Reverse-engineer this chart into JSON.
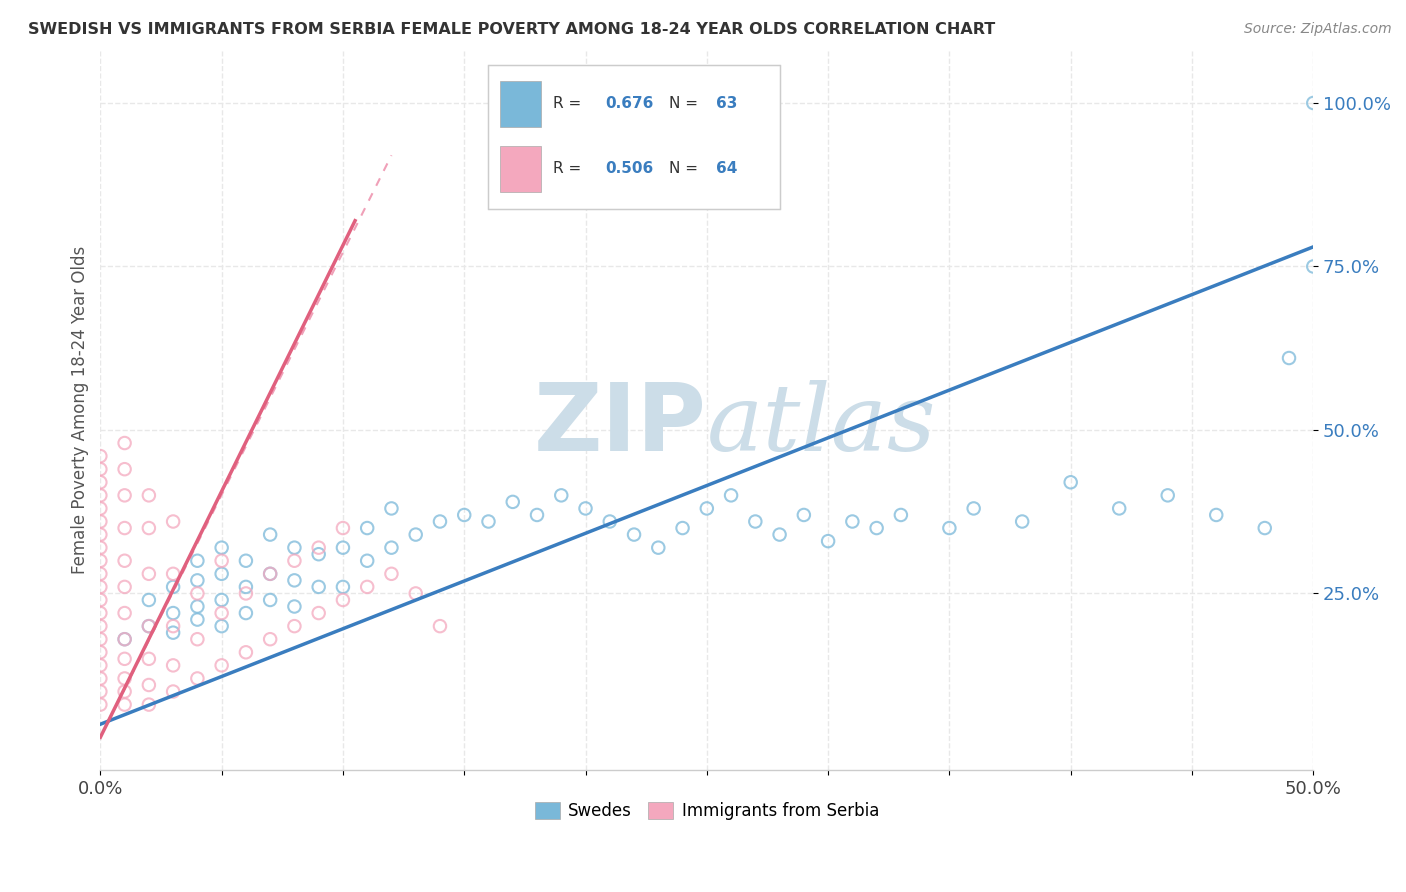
{
  "title": "SWEDISH VS IMMIGRANTS FROM SERBIA FEMALE POVERTY AMONG 18-24 YEAR OLDS CORRELATION CHART",
  "source": "Source: ZipAtlas.com",
  "ylabel": "Female Poverty Among 18-24 Year Olds",
  "y_tick_labels": [
    "25.0%",
    "50.0%",
    "75.0%",
    "100.0%"
  ],
  "x_tick_positions": [
    0.0,
    0.05,
    0.1,
    0.15,
    0.2,
    0.25,
    0.3,
    0.35,
    0.4,
    0.45,
    0.5
  ],
  "y_tick_positions": [
    0.25,
    0.5,
    0.75,
    1.0
  ],
  "legend_r1": "0.676",
  "legend_n1": "63",
  "legend_r2": "0.506",
  "legend_n2": "64",
  "blue_color": "#7ab8d9",
  "pink_color": "#f4a8be",
  "blue_line_color": "#3a7dbf",
  "pink_line_color": "#e0607e",
  "pink_dash_color": "#f0a0b8",
  "watermark_color": "#ccdde8",
  "xlim": [
    0.0,
    0.5
  ],
  "ylim": [
    -0.02,
    1.08
  ],
  "background_color": "#ffffff",
  "grid_color": "#e8e8e8",
  "blue_scatter_x": [
    0.01,
    0.02,
    0.02,
    0.03,
    0.03,
    0.03,
    0.04,
    0.04,
    0.04,
    0.04,
    0.05,
    0.05,
    0.05,
    0.05,
    0.06,
    0.06,
    0.06,
    0.07,
    0.07,
    0.07,
    0.08,
    0.08,
    0.08,
    0.09,
    0.09,
    0.1,
    0.1,
    0.11,
    0.11,
    0.12,
    0.12,
    0.13,
    0.14,
    0.15,
    0.16,
    0.17,
    0.18,
    0.19,
    0.2,
    0.21,
    0.22,
    0.23,
    0.24,
    0.25,
    0.26,
    0.27,
    0.28,
    0.29,
    0.3,
    0.31,
    0.32,
    0.33,
    0.35,
    0.36,
    0.38,
    0.4,
    0.42,
    0.44,
    0.46,
    0.48,
    0.49,
    0.5,
    0.5
  ],
  "blue_scatter_y": [
    0.18,
    0.2,
    0.24,
    0.19,
    0.22,
    0.26,
    0.21,
    0.23,
    0.27,
    0.3,
    0.2,
    0.24,
    0.28,
    0.32,
    0.22,
    0.26,
    0.3,
    0.24,
    0.28,
    0.34,
    0.23,
    0.27,
    0.32,
    0.26,
    0.31,
    0.26,
    0.32,
    0.3,
    0.35,
    0.32,
    0.38,
    0.34,
    0.36,
    0.37,
    0.36,
    0.39,
    0.37,
    0.4,
    0.38,
    0.36,
    0.34,
    0.32,
    0.35,
    0.38,
    0.4,
    0.36,
    0.34,
    0.37,
    0.33,
    0.36,
    0.35,
    0.37,
    0.35,
    0.38,
    0.36,
    0.42,
    0.38,
    0.4,
    0.37,
    0.35,
    0.61,
    0.75,
    1.0
  ],
  "pink_scatter_x": [
    0.0,
    0.0,
    0.0,
    0.0,
    0.0,
    0.0,
    0.0,
    0.0,
    0.0,
    0.0,
    0.0,
    0.0,
    0.0,
    0.0,
    0.0,
    0.0,
    0.0,
    0.0,
    0.0,
    0.0,
    0.01,
    0.01,
    0.01,
    0.01,
    0.01,
    0.01,
    0.01,
    0.01,
    0.01,
    0.01,
    0.01,
    0.01,
    0.02,
    0.02,
    0.02,
    0.02,
    0.02,
    0.02,
    0.02,
    0.03,
    0.03,
    0.03,
    0.03,
    0.03,
    0.04,
    0.04,
    0.04,
    0.05,
    0.05,
    0.05,
    0.06,
    0.06,
    0.07,
    0.07,
    0.08,
    0.08,
    0.09,
    0.09,
    0.1,
    0.1,
    0.11,
    0.12,
    0.13,
    0.14
  ],
  "pink_scatter_y": [
    0.08,
    0.1,
    0.12,
    0.14,
    0.16,
    0.18,
    0.2,
    0.22,
    0.24,
    0.26,
    0.28,
    0.3,
    0.32,
    0.34,
    0.36,
    0.38,
    0.4,
    0.42,
    0.44,
    0.46,
    0.08,
    0.1,
    0.12,
    0.15,
    0.18,
    0.22,
    0.26,
    0.3,
    0.35,
    0.4,
    0.44,
    0.48,
    0.08,
    0.11,
    0.15,
    0.2,
    0.28,
    0.35,
    0.4,
    0.1,
    0.14,
    0.2,
    0.28,
    0.36,
    0.12,
    0.18,
    0.25,
    0.14,
    0.22,
    0.3,
    0.16,
    0.25,
    0.18,
    0.28,
    0.2,
    0.3,
    0.22,
    0.32,
    0.24,
    0.35,
    0.26,
    0.28,
    0.25,
    0.2
  ],
  "blue_line_x": [
    0.0,
    0.5
  ],
  "blue_line_y": [
    0.05,
    0.78
  ],
  "pink_solid_line_x": [
    0.0,
    0.105
  ],
  "pink_solid_line_y": [
    0.03,
    0.82
  ],
  "pink_dash_line_x": [
    0.0,
    0.12
  ],
  "pink_dash_line_y": [
    0.03,
    0.92
  ]
}
